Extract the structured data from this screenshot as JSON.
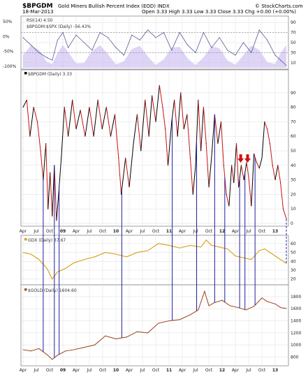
{
  "header": {
    "symbol": "$BPGDM",
    "title": "Gold Miners Bullish Percent Index (EOD)  INDX",
    "date": "18-Mar-2013",
    "ohlc": "Open 3.33  High 3.33  Low 3.33  Close 3.33  Chg +0.00 (+0.00%)",
    "watermark": "© StockCharts.com"
  },
  "colors": {
    "bpgdm_up": "#000000",
    "bpgdm_down": "#cc1111",
    "gdx": "#d4a017",
    "gold": "#a0522d",
    "rsi": "#5a5a9a",
    "rsi_fill_high": "#2e8b8b",
    "rsi_fill_low": "#2e8b8b",
    "rs_fill": "#c8b8f0",
    "vline": "#1f1fa0",
    "arrow": "#cc1111"
  },
  "panels": {
    "rsi": {
      "label": "RSI(14) 4.50",
      "secondary": "$BPGDM:$SPX (Daily) -56.43%"
    },
    "bpgdm": {
      "label": "$BPGDM (Daily) 3.33"
    },
    "gdx": {
      "label": "GDX (Daily) 37.67"
    },
    "gold": {
      "label": "$GOLD (Daily) 1604.60"
    }
  },
  "chart_data": [
    {
      "type": "line",
      "panel": "rsi",
      "title": "RSI(14) 4.50",
      "x_range": [
        2008.25,
        2013.21
      ],
      "ylim": [
        0,
        100
      ],
      "right_ticks": [
        10,
        30,
        50,
        70,
        90
      ],
      "left_ticks": [
        "50%",
        "0%",
        "-50%",
        "-100%"
      ],
      "x": [
        2008.25,
        2008.4,
        2008.55,
        2008.7,
        2008.8,
        2008.9,
        2009.0,
        2009.1,
        2009.25,
        2009.4,
        2009.55,
        2009.7,
        2009.85,
        2010.0,
        2010.15,
        2010.3,
        2010.45,
        2010.6,
        2010.75,
        2010.9,
        2011.05,
        2011.2,
        2011.35,
        2011.5,
        2011.65,
        2011.8,
        2011.95,
        2012.1,
        2012.25,
        2012.4,
        2012.55,
        2012.7,
        2012.85,
        2013.0,
        2013.1,
        2013.21
      ],
      "values": [
        60,
        45,
        30,
        20,
        15,
        55,
        70,
        40,
        65,
        50,
        35,
        70,
        60,
        40,
        25,
        65,
        55,
        75,
        60,
        70,
        35,
        70,
        45,
        30,
        70,
        40,
        60,
        35,
        25,
        50,
        30,
        75,
        55,
        25,
        15,
        4.5
      ]
    },
    {
      "type": "line",
      "panel": "bpgdm",
      "title": "$BPGDM (Daily) 3.33",
      "x_range": [
        2008.25,
        2013.21
      ],
      "ylim": [
        0,
        100
      ],
      "y_ticks": [
        0,
        10,
        20,
        30,
        40,
        50,
        60,
        70,
        80,
        90
      ],
      "x": [
        2008.25,
        2008.32,
        2008.38,
        2008.45,
        2008.52,
        2008.58,
        2008.63,
        2008.68,
        2008.72,
        2008.76,
        2008.8,
        2008.84,
        2008.88,
        2008.92,
        2008.97,
        2009.03,
        2009.1,
        2009.18,
        2009.25,
        2009.33,
        2009.42,
        2009.5,
        2009.58,
        2009.66,
        2009.74,
        2009.82,
        2009.9,
        2009.98,
        2010.05,
        2010.1,
        2010.18,
        2010.25,
        2010.33,
        2010.4,
        2010.47,
        2010.55,
        2010.62,
        2010.68,
        2010.75,
        2010.82,
        2010.88,
        2010.93,
        2010.98,
        2011.05,
        2011.1,
        2011.16,
        2011.22,
        2011.28,
        2011.34,
        2011.4,
        2011.45,
        2011.5,
        2011.55,
        2011.6,
        2011.65,
        2011.7,
        2011.75,
        2011.8,
        2011.86,
        2011.92,
        2011.98,
        2012.03,
        2012.08,
        2012.13,
        2012.18,
        2012.22,
        2012.27,
        2012.31,
        2012.36,
        2012.41,
        2012.46,
        2012.5,
        2012.55,
        2012.6,
        2012.65,
        2012.7,
        2012.75,
        2012.8,
        2012.85,
        2012.9,
        2012.95,
        2013.0,
        2013.05,
        2013.1,
        2013.15,
        2013.21
      ],
      "values": [
        80,
        85,
        60,
        80,
        70,
        50,
        30,
        55,
        10,
        35,
        5,
        40,
        2,
        20,
        45,
        80,
        60,
        85,
        65,
        78,
        60,
        80,
        60,
        85,
        65,
        80,
        60,
        75,
        45,
        20,
        45,
        25,
        55,
        75,
        50,
        85,
        60,
        88,
        70,
        95,
        80,
        65,
        40,
        70,
        85,
        60,
        90,
        65,
        75,
        45,
        20,
        40,
        85,
        50,
        80,
        55,
        25,
        45,
        75,
        55,
        70,
        40,
        20,
        12,
        40,
        28,
        55,
        25,
        40,
        30,
        42,
        32,
        12,
        48,
        42,
        38,
        45,
        70,
        65,
        55,
        40,
        30,
        40,
        28,
        10,
        3.33
      ]
    },
    {
      "type": "line",
      "panel": "gdx",
      "title": "GDX (Daily) 37.67",
      "x_range": [
        2008.25,
        2013.21
      ],
      "ylim": [
        15,
        67
      ],
      "y_ticks": [
        20,
        30,
        40,
        50,
        60
      ],
      "x": [
        2008.25,
        2008.4,
        2008.55,
        2008.7,
        2008.8,
        2008.9,
        2009.05,
        2009.2,
        2009.4,
        2009.6,
        2009.8,
        2010.0,
        2010.2,
        2010.4,
        2010.6,
        2010.8,
        2011.0,
        2011.2,
        2011.4,
        2011.6,
        2011.7,
        2011.8,
        2011.95,
        2012.1,
        2012.25,
        2012.4,
        2012.55,
        2012.7,
        2012.8,
        2012.95,
        2013.1,
        2013.21
      ],
      "values": [
        50,
        48,
        42,
        32,
        20,
        28,
        32,
        38,
        42,
        45,
        50,
        48,
        45,
        50,
        52,
        60,
        58,
        55,
        58,
        56,
        64,
        58,
        56,
        54,
        46,
        44,
        42,
        52,
        54,
        48,
        42,
        37.67
      ]
    },
    {
      "type": "line",
      "panel": "gold",
      "title": "$GOLD (Daily) 1604.60",
      "x_range": [
        2008.25,
        2013.21
      ],
      "ylim": [
        700,
        1950
      ],
      "y_ticks": [
        800,
        1000,
        1200,
        1400,
        1600,
        1800
      ],
      "x": [
        2008.25,
        2008.4,
        2008.55,
        2008.7,
        2008.8,
        2008.9,
        2009.05,
        2009.2,
        2009.4,
        2009.6,
        2009.8,
        2010.0,
        2010.2,
        2010.4,
        2010.6,
        2010.8,
        2011.0,
        2011.2,
        2011.4,
        2011.55,
        2011.67,
        2011.75,
        2011.85,
        2012.0,
        2012.15,
        2012.3,
        2012.45,
        2012.6,
        2012.75,
        2012.85,
        2013.0,
        2013.1,
        2013.21
      ],
      "values": [
        920,
        900,
        940,
        840,
        760,
        830,
        900,
        920,
        960,
        1000,
        1150,
        1100,
        1130,
        1220,
        1200,
        1360,
        1400,
        1420,
        1500,
        1580,
        1890,
        1650,
        1700,
        1740,
        1650,
        1620,
        1580,
        1640,
        1780,
        1720,
        1680,
        1620,
        1604.6
      ]
    }
  ],
  "x_ticks": [
    {
      "label": "Apr",
      "x": 2008.25
    },
    {
      "label": "Jul",
      "x": 2008.5
    },
    {
      "label": "Oct",
      "x": 2008.75
    },
    {
      "label": "09",
      "x": 2009.0,
      "bold": true
    },
    {
      "label": "Apr",
      "x": 2009.25
    },
    {
      "label": "Jul",
      "x": 2009.5
    },
    {
      "label": "Oct",
      "x": 2009.75
    },
    {
      "label": "10",
      "x": 2010.0,
      "bold": true
    },
    {
      "label": "Apr",
      "x": 2010.25
    },
    {
      "label": "Jul",
      "x": 2010.5
    },
    {
      "label": "Oct",
      "x": 2010.75
    },
    {
      "label": "11",
      "x": 2011.0,
      "bold": true
    },
    {
      "label": "Apr",
      "x": 2011.25
    },
    {
      "label": "Jul",
      "x": 2011.5
    },
    {
      "label": "Oct",
      "x": 2011.75
    },
    {
      "label": "12",
      "x": 2012.0,
      "bold": true
    },
    {
      "label": "Apr",
      "x": 2012.25
    },
    {
      "label": "Jul",
      "x": 2012.5
    },
    {
      "label": "Oct",
      "x": 2012.75
    },
    {
      "label": "13",
      "x": 2013.0,
      "bold": true
    }
  ],
  "markers": {
    "vertical_lines": [
      2008.63,
      2008.84,
      2008.93,
      2010.11,
      2011.06,
      2011.52,
      2011.86,
      2012.05,
      2012.33,
      2012.43,
      2012.62
    ],
    "dashed_line": 2013.21,
    "red_arrows": [
      2012.35,
      2012.48
    ]
  }
}
